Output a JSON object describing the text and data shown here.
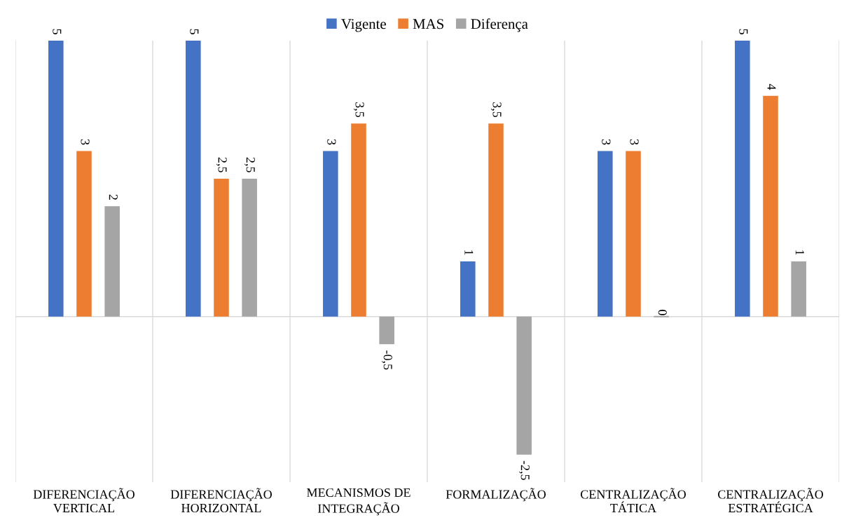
{
  "chart_data": {
    "type": "bar",
    "categories": [
      "DIFERENCIAÇÃO\nVERTICAL",
      "DIFERENCIAÇÃO\nHORIZONTAL",
      "MECANISMOS DE\nINTEGRAÇÃO",
      "FORMALIZAÇÃO",
      "CENTRALIZAÇÃO\nTÁTICA",
      "CENTRALIZAÇÃO\nESTRATÉGICA"
    ],
    "series": [
      {
        "name": "Vigente",
        "color": "#4472c4",
        "values": [
          5,
          5,
          3,
          1,
          3,
          5
        ],
        "value_labels": [
          "5",
          "5",
          "3",
          "1",
          "3",
          "5"
        ]
      },
      {
        "name": "MAS",
        "color": "#ed7d31",
        "values": [
          3,
          2.5,
          3.5,
          3.5,
          3,
          4
        ],
        "value_labels": [
          "3",
          "2,5",
          "3,5",
          "3,5",
          "3",
          "4"
        ]
      },
      {
        "name": "Diferença",
        "color": "#a5a5a5",
        "values": [
          2,
          2.5,
          -0.5,
          -2.5,
          0,
          1
        ],
        "value_labels": [
          "2",
          "2,5",
          "-0,5",
          "-2,5",
          "0",
          "1"
        ]
      }
    ],
    "ylim": [
      -3,
      5
    ],
    "tick_labels": "x",
    "grid": "x",
    "legend": "top"
  }
}
